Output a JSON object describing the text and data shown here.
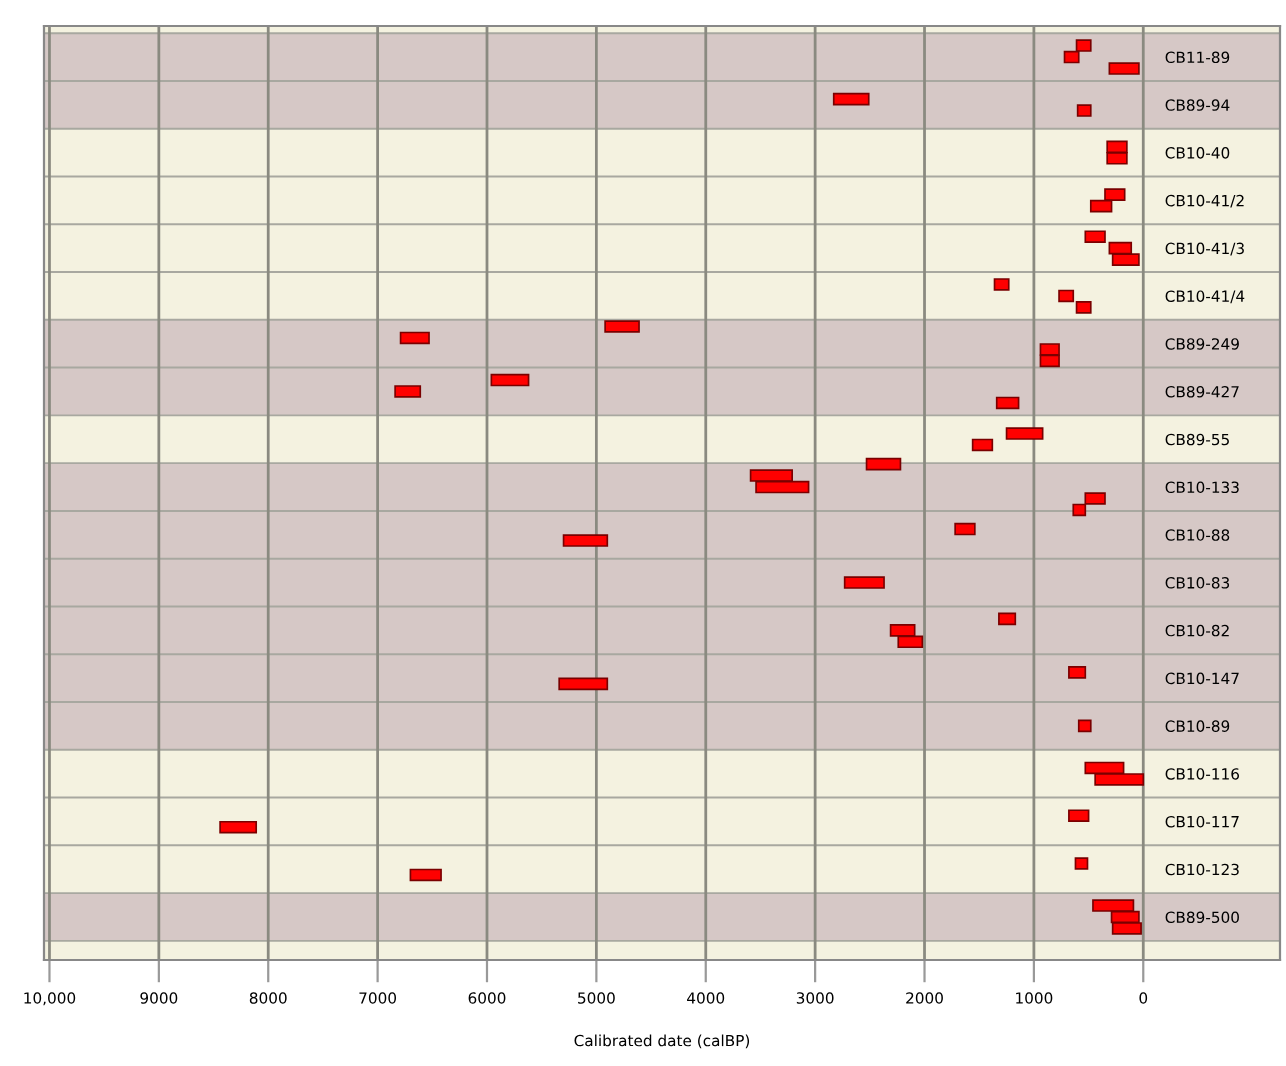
{
  "chart_data": {
    "type": "bar",
    "orientation": "horizontal",
    "xlabel": "Calibrated date (calBP)",
    "categories": [
      "CB11-89",
      "CB89-94",
      "CB10-40",
      "CB10-41/2",
      "CB10-41/3",
      "CB10-41/4",
      "CB89-249",
      "CB89-427",
      "CB89-55",
      "CB10-133",
      "CB10-88",
      "CB10-83",
      "CB10-82",
      "CB10-147",
      "CB10-89",
      "CB10-116",
      "CB10-117",
      "CB10-123",
      "CB89-500"
    ],
    "series": [
      {
        "color": "#ff0000",
        "base": [
          480,
          2510,
          150,
          170,
          350,
          1230,
          4610,
          5620,
          920,
          2220,
          1540,
          2370,
          1170,
          530,
          480,
          180,
          500,
          510,
          90
        ],
        "values": [
          130,
          320,
          180,
          180,
          180,
          130,
          310,
          340,
          330,
          310,
          180,
          360,
          150,
          150,
          110,
          350,
          180,
          110,
          370
        ]
      },
      {
        "color": "#ff0000",
        "base": [
          590,
          480,
          150,
          290,
          110,
          640,
          6530,
          6610,
          1380,
          3210,
          4900,
          null,
          2090,
          4900,
          null,
          0,
          8110,
          6420,
          40
        ],
        "values": [
          130,
          120,
          180,
          190,
          200,
          130,
          260,
          230,
          180,
          380,
          400,
          null,
          220,
          440,
          null,
          440,
          330,
          280,
          250
        ]
      },
      {
        "color": "#ff0000",
        "base": [
          40,
          null,
          null,
          null,
          40,
          480,
          770,
          1140,
          null,
          3060,
          null,
          null,
          2020,
          null,
          null,
          null,
          null,
          null,
          20
        ],
        "values": [
          270,
          null,
          null,
          null,
          240,
          130,
          170,
          200,
          null,
          480,
          null,
          null,
          220,
          null,
          null,
          null,
          null,
          null,
          260
        ]
      },
      {
        "color": "#ff0000",
        "base": [
          null,
          null,
          null,
          null,
          null,
          null,
          770,
          null,
          null,
          350,
          null,
          null,
          null,
          null,
          null,
          null,
          null,
          null,
          null
        ],
        "values": [
          null,
          null,
          null,
          null,
          null,
          null,
          170,
          null,
          null,
          180,
          null,
          null,
          null,
          null,
          null,
          null,
          null,
          null,
          null
        ]
      },
      {
        "color": "#ff0000",
        "base": [
          null,
          null,
          null,
          null,
          null,
          null,
          null,
          null,
          null,
          530,
          null,
          null,
          null,
          null,
          null,
          null,
          null,
          null,
          null
        ],
        "values": [
          null,
          null,
          null,
          null,
          null,
          null,
          null,
          null,
          null,
          110,
          null,
          null,
          null,
          null,
          null,
          null,
          null,
          null,
          null
        ]
      }
    ],
    "bands": [
      {
        "axis": "y",
        "from": "CB11-89",
        "to": "CB89-94",
        "color": "#d6c8c6"
      },
      {
        "axis": "y",
        "from": "CB89-249",
        "to": "CB89-427",
        "color": "#d6c8c6"
      },
      {
        "axis": "y",
        "from": "CB10-133",
        "to": "CB10-89",
        "color": "#d6c8c6"
      },
      {
        "axis": "y",
        "from": "CB89-500",
        "to": "CB89-500",
        "color": "#d6c8c6"
      }
    ],
    "xlim": [
      10050,
      -1250
    ],
    "xticks": [
      {
        "value": 10000,
        "label": "10,000"
      },
      9000,
      8000,
      7000,
      6000,
      5000,
      4000,
      3000,
      2000,
      1000,
      0
    ],
    "grid": "x"
  }
}
